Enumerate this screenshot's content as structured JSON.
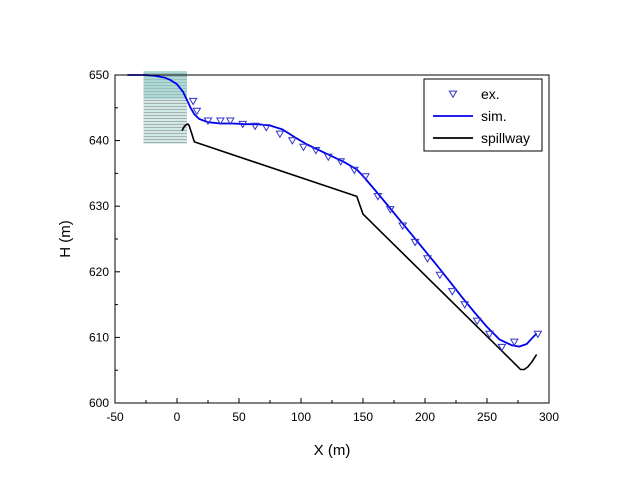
{
  "chart_data": {
    "type": "line",
    "xlabel": "X (m)",
    "ylabel": "H (m)",
    "xlim": [
      -50,
      300
    ],
    "ylim": [
      600,
      650
    ],
    "xticks": [
      -50,
      0,
      50,
      100,
      150,
      200,
      250,
      300
    ],
    "yticks": [
      600,
      610,
      620,
      630,
      640,
      650
    ],
    "grid": false,
    "legend_position": "top-right",
    "legend": [
      "ex.",
      "sim.",
      "spillway"
    ],
    "series": [
      {
        "name": "ex.",
        "style": "marker-triangle-down",
        "color": "#3333cc",
        "x": [
          13,
          16,
          25,
          35,
          43,
          53,
          63,
          72,
          83,
          93,
          102,
          112,
          122,
          132,
          143,
          152,
          162,
          172,
          182,
          192,
          202,
          212,
          222,
          232,
          242,
          252,
          262,
          272,
          291
        ],
        "y": [
          646,
          644.5,
          643,
          643,
          643,
          642.5,
          642.2,
          642,
          641,
          640,
          639,
          638.5,
          637.5,
          636.8,
          635.5,
          634.5,
          631.5,
          629.5,
          627,
          624.5,
          622,
          619.5,
          617,
          615,
          612.5,
          610.5,
          608.5,
          609.3,
          610.5
        ]
      },
      {
        "name": "sim.",
        "style": "line",
        "color": "#0000ee",
        "x": [
          -40,
          -25,
          -18,
          -10,
          -5,
          0,
          5,
          8,
          11,
          14,
          18,
          25,
          35,
          45,
          55,
          65,
          75,
          85,
          95,
          105,
          115,
          125,
          135,
          145,
          150,
          160,
          170,
          180,
          190,
          200,
          210,
          220,
          230,
          240,
          250,
          260,
          270,
          276,
          282,
          286,
          290
        ],
        "y": [
          650,
          650,
          649.9,
          649.6,
          649.2,
          648.6,
          647.4,
          646.2,
          645,
          644,
          643.3,
          642.8,
          642.6,
          642.6,
          642.5,
          642.5,
          642.3,
          641.7,
          640.5,
          639.4,
          638.5,
          637.6,
          636.7,
          635.6,
          634.6,
          632.4,
          630.1,
          627.8,
          625.5,
          623.2,
          620.9,
          618.5,
          616.1,
          613.8,
          611.6,
          609.7,
          608.8,
          608.6,
          609,
          609.8,
          610.6
        ]
      },
      {
        "name": "spillway",
        "style": "line",
        "color": "#000000",
        "x": [
          4,
          6,
          8,
          9,
          10,
          11,
          12,
          13,
          14,
          145,
          150,
          275,
          277,
          280,
          283,
          286,
          288,
          290
        ],
        "y": [
          641.5,
          642.2,
          642.5,
          642.5,
          642.2,
          641.6,
          641,
          640.4,
          639.8,
          631.5,
          628.8,
          605.5,
          605.1,
          605.1,
          605.5,
          606.2,
          606.8,
          607.4
        ]
      }
    ],
    "colors": {
      "ex": "#3333cc",
      "sim": "#0000ee",
      "spillway": "#000000",
      "reservoir_fill": "#8fcbc6",
      "reservoir_hatch": "#b0b0b0"
    }
  }
}
